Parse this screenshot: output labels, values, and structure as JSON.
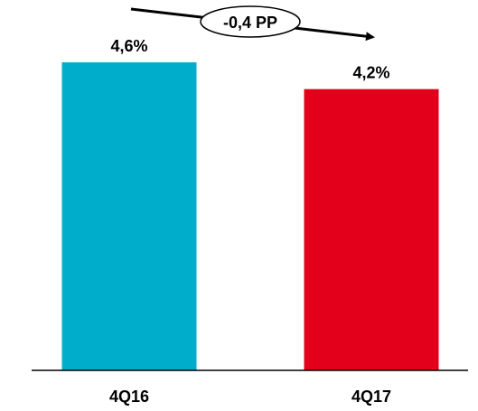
{
  "chart_data": {
    "type": "bar",
    "categories": [
      "4Q16",
      "4Q17"
    ],
    "values": [
      4.6,
      4.2
    ],
    "value_labels": [
      "4,6%",
      "4,2%"
    ],
    "bar_colors": [
      "#00AECB",
      "#E2001A"
    ],
    "ylim": [
      0,
      4.6
    ],
    "grid": false,
    "annotation": {
      "text": "-0,4 PP",
      "direction": "down-right"
    },
    "title": "",
    "xlabel": "",
    "ylabel": ""
  }
}
